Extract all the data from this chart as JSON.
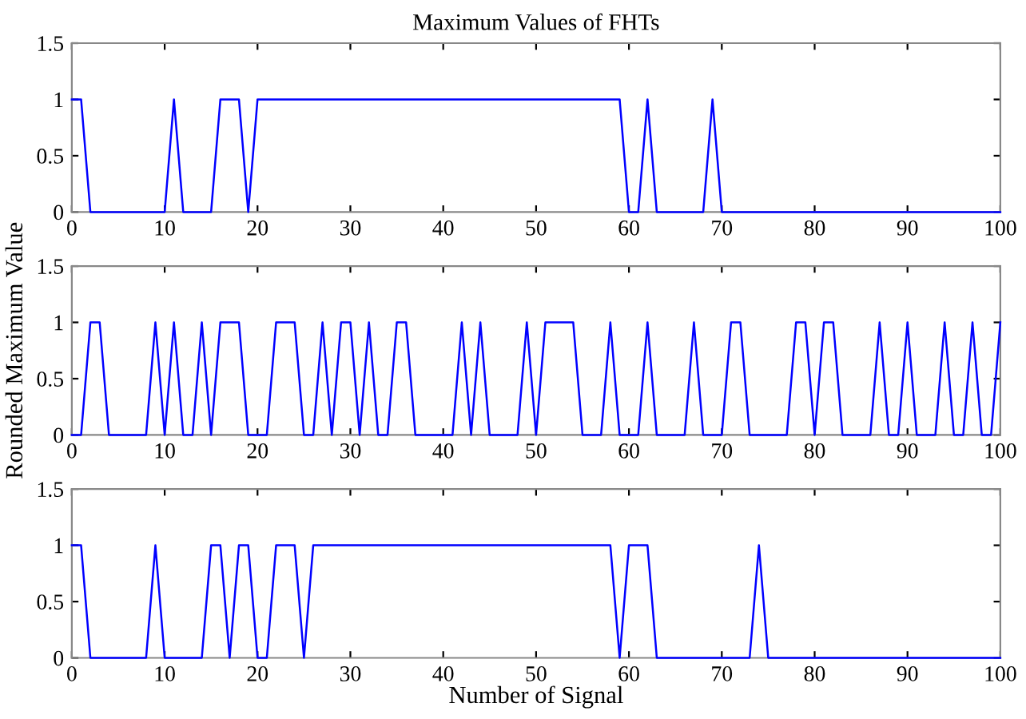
{
  "chart_data": [
    {
      "type": "line",
      "title": "Maximum Values of FHTs",
      "x": [
        0,
        1,
        2,
        3,
        4,
        5,
        6,
        7,
        8,
        9,
        10,
        11,
        12,
        13,
        14,
        15,
        16,
        17,
        18,
        19,
        20,
        21,
        22,
        23,
        24,
        25,
        26,
        27,
        28,
        29,
        30,
        31,
        32,
        33,
        34,
        35,
        36,
        37,
        38,
        39,
        40,
        41,
        42,
        43,
        44,
        45,
        46,
        47,
        48,
        49,
        50,
        51,
        52,
        53,
        54,
        55,
        56,
        57,
        58,
        59,
        60,
        61,
        62,
        63,
        64,
        65,
        66,
        67,
        68,
        69,
        70,
        71,
        72,
        73,
        74,
        75,
        76,
        77,
        78,
        79,
        80,
        81,
        82,
        83,
        84,
        85,
        86,
        87,
        88,
        89,
        90,
        91,
        92,
        93,
        94,
        95,
        96,
        97,
        98,
        99,
        100
      ],
      "series": [
        {
          "color": "#0000ff",
          "values": [
            1,
            1,
            0,
            0,
            0,
            0,
            0,
            0,
            0,
            0,
            0,
            1,
            0,
            0,
            0,
            0,
            1,
            1,
            1,
            0,
            1,
            1,
            1,
            1,
            1,
            1,
            1,
            1,
            1,
            1,
            1,
            1,
            1,
            1,
            1,
            1,
            1,
            1,
            1,
            1,
            1,
            1,
            1,
            1,
            1,
            1,
            1,
            1,
            1,
            1,
            1,
            1,
            1,
            1,
            1,
            1,
            1,
            1,
            1,
            1,
            0,
            0,
            1,
            0,
            0,
            0,
            0,
            0,
            0,
            1,
            0,
            0,
            0,
            0,
            0,
            0,
            0,
            0,
            0,
            0,
            0,
            0,
            0,
            0,
            0,
            0,
            0,
            0,
            0,
            0,
            0,
            0,
            0,
            0,
            0,
            0,
            0,
            0,
            0,
            0,
            0
          ]
        }
      ],
      "xlim": [
        0,
        100
      ],
      "ylim": [
        0,
        1.5
      ],
      "xticks": [
        0,
        10,
        20,
        30,
        40,
        50,
        60,
        70,
        80,
        90,
        100
      ],
      "yticks": [
        0,
        0.5,
        1,
        1.5
      ],
      "grid": false
    },
    {
      "type": "line",
      "ylabel": "Rounded Maximum Value",
      "x": [
        0,
        1,
        2,
        3,
        4,
        5,
        6,
        7,
        8,
        9,
        10,
        11,
        12,
        13,
        14,
        15,
        16,
        17,
        18,
        19,
        20,
        21,
        22,
        23,
        24,
        25,
        26,
        27,
        28,
        29,
        30,
        31,
        32,
        33,
        34,
        35,
        36,
        37,
        38,
        39,
        40,
        41,
        42,
        43,
        44,
        45,
        46,
        47,
        48,
        49,
        50,
        51,
        52,
        53,
        54,
        55,
        56,
        57,
        58,
        59,
        60,
        61,
        62,
        63,
        64,
        65,
        66,
        67,
        68,
        69,
        70,
        71,
        72,
        73,
        74,
        75,
        76,
        77,
        78,
        79,
        80,
        81,
        82,
        83,
        84,
        85,
        86,
        87,
        88,
        89,
        90,
        91,
        92,
        93,
        94,
        95,
        96,
        97,
        98,
        99,
        100
      ],
      "series": [
        {
          "color": "#0000ff",
          "values": [
            0,
            0,
            1,
            1,
            0,
            0,
            0,
            0,
            0,
            1,
            0,
            1,
            0,
            0,
            1,
            0,
            1,
            1,
            1,
            0,
            0,
            0,
            1,
            1,
            1,
            0,
            0,
            1,
            0,
            1,
            1,
            0,
            1,
            0,
            0,
            1,
            1,
            0,
            0,
            0,
            0,
            0,
            1,
            0,
            1,
            0,
            0,
            0,
            0,
            1,
            0,
            1,
            1,
            1,
            1,
            0,
            0,
            0,
            1,
            0,
            0,
            0,
            1,
            0,
            0,
            0,
            0,
            1,
            0,
            0,
            0,
            1,
            1,
            0,
            0,
            0,
            0,
            0,
            1,
            1,
            0,
            1,
            1,
            0,
            0,
            0,
            0,
            1,
            0,
            0,
            1,
            0,
            0,
            0,
            1,
            0,
            0,
            1,
            0,
            0,
            1
          ]
        }
      ],
      "xlim": [
        0,
        100
      ],
      "ylim": [
        0,
        1.5
      ],
      "xticks": [
        0,
        10,
        20,
        30,
        40,
        50,
        60,
        70,
        80,
        90,
        100
      ],
      "yticks": [
        0,
        0.5,
        1,
        1.5
      ],
      "grid": false
    },
    {
      "type": "line",
      "xlabel": "Number of Signal",
      "x": [
        0,
        1,
        2,
        3,
        4,
        5,
        6,
        7,
        8,
        9,
        10,
        11,
        12,
        13,
        14,
        15,
        16,
        17,
        18,
        19,
        20,
        21,
        22,
        23,
        24,
        25,
        26,
        27,
        28,
        29,
        30,
        31,
        32,
        33,
        34,
        35,
        36,
        37,
        38,
        39,
        40,
        41,
        42,
        43,
        44,
        45,
        46,
        47,
        48,
        49,
        50,
        51,
        52,
        53,
        54,
        55,
        56,
        57,
        58,
        59,
        60,
        61,
        62,
        63,
        64,
        65,
        66,
        67,
        68,
        69,
        70,
        71,
        72,
        73,
        74,
        75,
        76,
        77,
        78,
        79,
        80,
        81,
        82,
        83,
        84,
        85,
        86,
        87,
        88,
        89,
        90,
        91,
        92,
        93,
        94,
        95,
        96,
        97,
        98,
        99,
        100
      ],
      "series": [
        {
          "color": "#0000ff",
          "values": [
            1,
            1,
            0,
            0,
            0,
            0,
            0,
            0,
            0,
            1,
            0,
            0,
            0,
            0,
            0,
            1,
            1,
            0,
            1,
            1,
            0,
            0,
            1,
            1,
            1,
            0,
            1,
            1,
            1,
            1,
            1,
            1,
            1,
            1,
            1,
            1,
            1,
            1,
            1,
            1,
            1,
            1,
            1,
            1,
            1,
            1,
            1,
            1,
            1,
            1,
            1,
            1,
            1,
            1,
            1,
            1,
            1,
            1,
            1,
            0,
            1,
            1,
            1,
            0,
            0,
            0,
            0,
            0,
            0,
            0,
            0,
            0,
            0,
            0,
            1,
            0,
            0,
            0,
            0,
            0,
            0,
            0,
            0,
            0,
            0,
            0,
            0,
            0,
            0,
            0,
            0,
            0,
            0,
            0,
            0,
            0,
            0,
            0,
            0,
            0,
            0
          ]
        }
      ],
      "xlim": [
        0,
        100
      ],
      "ylim": [
        0,
        1.5
      ],
      "xticks": [
        0,
        10,
        20,
        30,
        40,
        50,
        60,
        70,
        80,
        90,
        100
      ],
      "yticks": [
        0,
        0.5,
        1,
        1.5
      ],
      "grid": false
    }
  ]
}
